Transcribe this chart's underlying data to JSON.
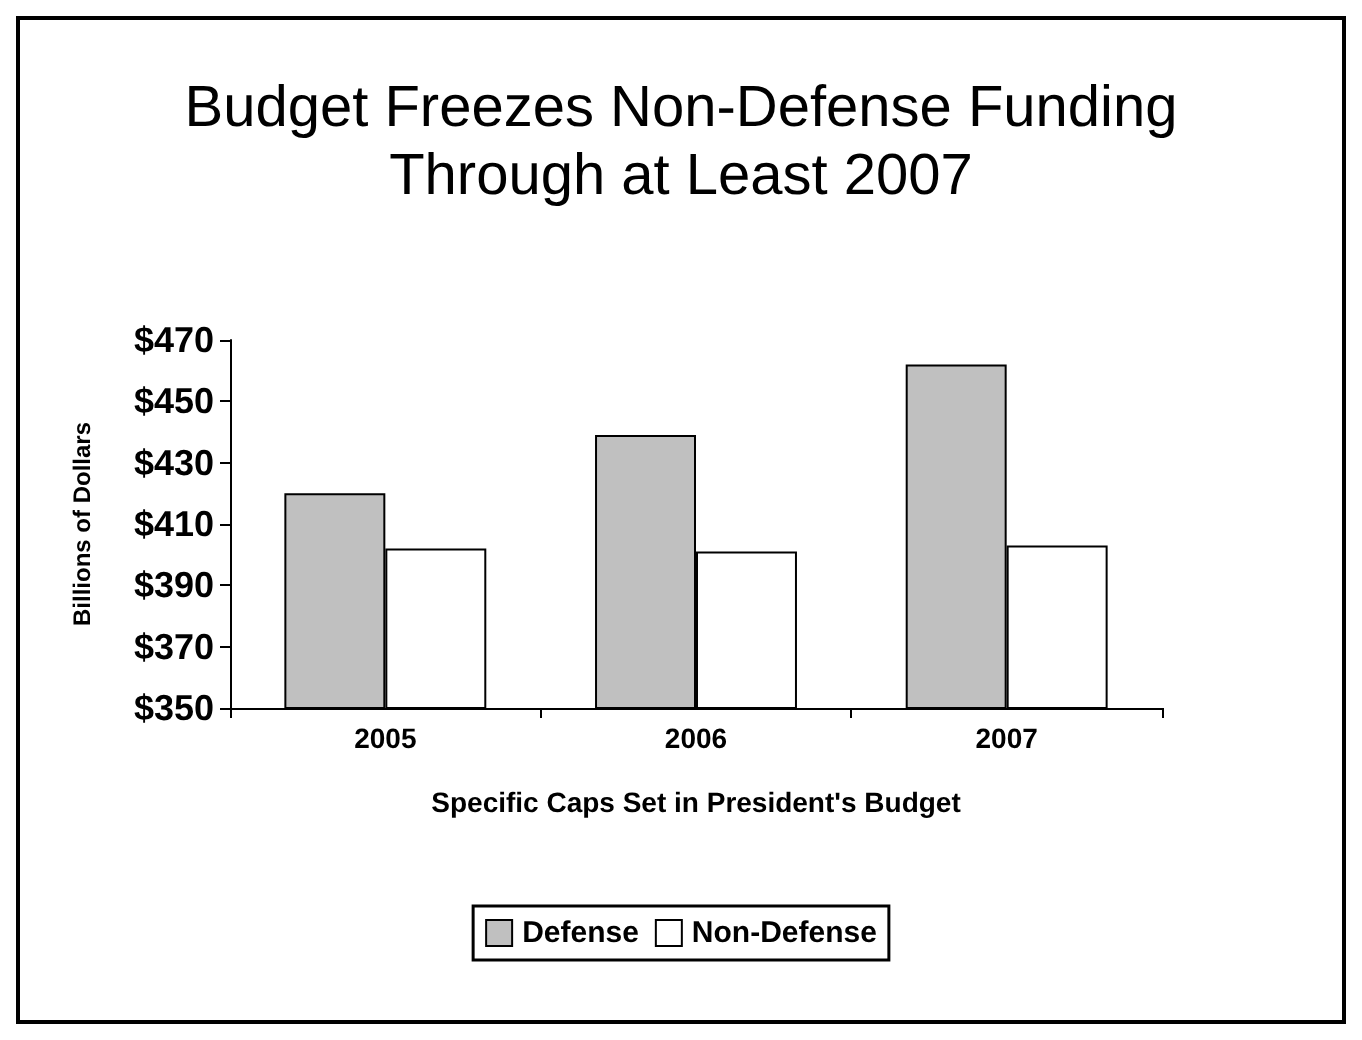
{
  "chart_data": {
    "type": "bar",
    "title": "Budget Freezes Non-Defense Funding\nThrough at Least 2007",
    "xlabel": "Specific Caps Set in President's Budget",
    "ylabel": "Billions of Dollars",
    "categories": [
      "2005",
      "2006",
      "2007"
    ],
    "series": [
      {
        "name": "Defense",
        "color": "#c0c0c0",
        "values": [
          420,
          439,
          462
        ]
      },
      {
        "name": "Non-Defense",
        "color": "#ffffff",
        "values": [
          402,
          401,
          403
        ]
      }
    ],
    "ylim": [
      350,
      470
    ],
    "yticks": [
      {
        "value": 350,
        "label": "$350"
      },
      {
        "value": 370,
        "label": "$370"
      },
      {
        "value": 390,
        "label": "$390"
      },
      {
        "value": 410,
        "label": "$410"
      },
      {
        "value": 430,
        "label": "$430"
      },
      {
        "value": 450,
        "label": "$450"
      },
      {
        "value": 470,
        "label": "$470"
      }
    ],
    "grid": false,
    "legend": "bottom"
  }
}
